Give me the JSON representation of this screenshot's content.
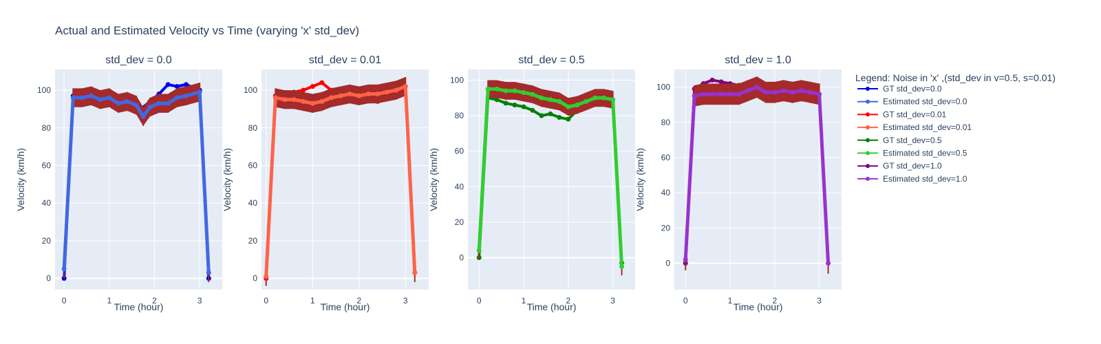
{
  "chart_data": {
    "type": "line",
    "title": "Actual and Estimated Velocity vs Time (varying 'x' std_dev)",
    "legend": {
      "title": "Legend: Noise in 'x' ,(std_dev in v=0.5, s=0.01)",
      "placement": "right",
      "entries": [
        {
          "name": "GT std_dev=0.0",
          "color": "#0000ee"
        },
        {
          "name": "Estimated std_dev=0.0",
          "color": "#4169e1"
        },
        {
          "name": "GT std_dev=0.01",
          "color": "#ff0000"
        },
        {
          "name": "Estimated std_dev=0.01",
          "color": "#ff6347"
        },
        {
          "name": "GT std_dev=0.5",
          "color": "#008000"
        },
        {
          "name": "Estimated std_dev=0.5",
          "color": "#32cd32"
        },
        {
          "name": "GT std_dev=1.0",
          "color": "#800080"
        },
        {
          "name": "Estimated std_dev=1.0",
          "color": "#9932cc"
        }
      ]
    },
    "errorband_color": "#a52a2a",
    "grid": true,
    "subplots": [
      {
        "title": "std_dev = 0.0",
        "xlabel": "Time (hour)",
        "ylabel": "Velocity (km/h)",
        "xlim": [
          -0.2,
          3.5
        ],
        "ylim": [
          -6,
          111
        ],
        "xticks": [
          0,
          1,
          2,
          3
        ],
        "yticks": [
          0,
          20,
          40,
          60,
          80,
          100
        ],
        "series": [
          {
            "name": "GT std_dev=0.0",
            "color": "#0000ee",
            "x": [
              0,
              0.2,
              0.4,
              0.8,
              1.2,
              1.5,
              1.7,
              1.9,
              2.1,
              2.3,
              2.5,
              2.7,
              3.0,
              3.2
            ],
            "y": [
              0,
              97,
              96,
              97,
              95,
              93,
              90,
              94,
              98,
              103,
              102,
              103,
              100,
              0
            ]
          },
          {
            "name": "Estimated std_dev=0.0",
            "color": "#4169e1",
            "x": [
              0,
              0.2,
              0.4,
              0.6,
              0.8,
              1.0,
              1.2,
              1.4,
              1.6,
              1.75,
              1.9,
              2.1,
              2.3,
              2.5,
              2.7,
              3.0,
              3.2
            ],
            "y": [
              5,
              96,
              96,
              97,
              95,
              96,
              93,
              94,
              92,
              86,
              91,
              93,
              93,
              96,
              97,
              99,
              3
            ],
            "error": 5
          }
        ]
      },
      {
        "title": "std_dev = 0.01",
        "xlabel": "Time (hour)",
        "ylabel": "Velocity (km/h)",
        "xlim": [
          -0.1,
          3.5
        ],
        "ylim": [
          -6,
          111
        ],
        "xticks": [
          0,
          1,
          2,
          3
        ],
        "yticks": [
          0,
          20,
          40,
          60,
          80,
          100
        ],
        "series": [
          {
            "name": "GT std_dev=0.01",
            "color": "#ff0000",
            "x": [
              0,
              0.2,
              0.4,
              0.6,
              0.8,
              1.0,
              1.2,
              1.4,
              1.6,
              1.8,
              2.0,
              2.2,
              2.4,
              2.6,
              2.8,
              3.0,
              3.2
            ],
            "y": [
              0,
              97,
              98,
              99,
              100,
              102,
              104,
              100,
              98,
              99,
              98,
              96,
              94,
              97,
              100,
              102,
              3
            ],
            "error": 0
          },
          {
            "name": "Estimated std_dev=0.01",
            "color": "#ff6347",
            "x": [
              0,
              0.2,
              0.4,
              0.6,
              0.8,
              1.0,
              1.2,
              1.4,
              1.6,
              1.8,
              2.0,
              2.2,
              2.4,
              2.6,
              2.8,
              3.0,
              3.2
            ],
            "y": [
              1,
              96,
              95,
              95,
              94,
              93,
              94,
              96,
              97,
              98,
              97,
              98,
              98,
              99,
              100,
              102,
              3
            ],
            "error": 5
          }
        ]
      },
      {
        "title": "std_dev = 0.5",
        "xlabel": "Time (hour)",
        "ylabel": "Velocity (km/h)",
        "xlim": [
          -0.25,
          3.5
        ],
        "ylim": [
          -18,
          106
        ],
        "xticks": [
          0,
          1,
          2,
          3
        ],
        "yticks": [
          0,
          20,
          40,
          60,
          80,
          100
        ],
        "series": [
          {
            "name": "GT std_dev=0.5",
            "color": "#008000",
            "x": [
              0,
              0.2,
              0.4,
              0.6,
              0.8,
              1.0,
              1.2,
              1.4,
              1.6,
              1.8,
              2.0,
              2.2,
              2.4,
              2.6,
              2.8,
              3.0,
              3.2
            ],
            "y": [
              0,
              90,
              89,
              87,
              86,
              85,
              83,
              80,
              81,
              79,
              78,
              83,
              85,
              87,
              88,
              89,
              -3
            ],
            "error": 0
          },
          {
            "name": "Estimated std_dev=0.5",
            "color": "#32cd32",
            "x": [
              0,
              0.2,
              0.4,
              0.6,
              0.8,
              1.0,
              1.2,
              1.4,
              1.6,
              1.8,
              2.0,
              2.2,
              2.4,
              2.6,
              2.8,
              3.0,
              3.2
            ],
            "y": [
              4,
              95,
              95,
              94,
              94,
              93,
              92,
              90,
              89,
              88,
              85,
              86,
              88,
              90,
              90,
              89,
              -5
            ],
            "error": 5
          }
        ]
      },
      {
        "title": "std_dev = 1.0",
        "xlabel": "Time (hour)",
        "ylabel": "Velocity (km/h)",
        "xlim": [
          -0.25,
          3.5
        ],
        "ylim": [
          -15,
          110
        ],
        "xticks": [
          0,
          1,
          2,
          3
        ],
        "yticks": [
          0,
          20,
          40,
          60,
          80,
          100
        ],
        "series": [
          {
            "name": "GT std_dev=1.0",
            "color": "#800080",
            "x": [
              0,
              0.2,
              0.4,
              0.6,
              0.8,
              1.0,
              1.2
            ],
            "y": [
              0,
              99,
              102,
              104,
              103,
              102,
              101
            ],
            "error": 0
          },
          {
            "name": "Estimated std_dev=1.0",
            "color": "#9932cc",
            "x": [
              0,
              0.2,
              0.4,
              0.6,
              0.8,
              1.0,
              1.2,
              1.4,
              1.6,
              1.8,
              2.0,
              2.2,
              2.4,
              2.6,
              2.8,
              3.0,
              3.2
            ],
            "y": [
              2,
              95,
              96,
              96,
              96,
              96,
              96,
              98,
              100,
              97,
              97,
              98,
              97,
              98,
              97,
              96,
              0
            ],
            "error": 6
          }
        ]
      }
    ]
  }
}
